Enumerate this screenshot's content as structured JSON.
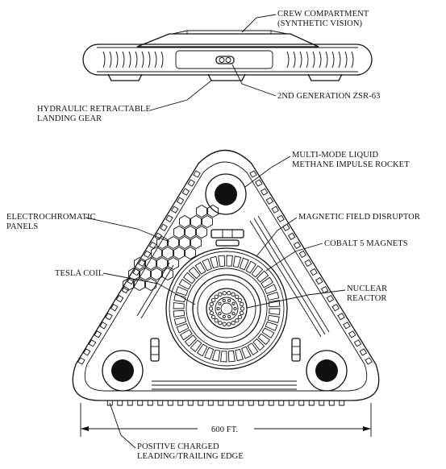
{
  "title": "",
  "labels": {
    "crew_1": "CREW COMPARTMENT",
    "crew_2": "(SYNTHETIC VISION)",
    "gen_2": "2ND GENERATION ZSR-63",
    "gear_1": "HYDRAULIC RETRACTABLE",
    "gear_2": "LANDING GEAR",
    "rocket_1": "MULTI-MODE LIQUID",
    "rocket_2": "METHANE IMPULSE ROCKET",
    "electro_1": "ELECTROCHROMATIC",
    "electro_2": "PANELS",
    "mfd": "MAGNETIC FIELD DISRUPTOR",
    "cobalt": "COBALT 5 MAGNETS",
    "tesla": "TESLA COIL",
    "nuclear_1": "NUCLEAR",
    "nuclear_2": "REACTOR",
    "dimension": "600 FT.",
    "edge_1": "POSITIVE CHARGED",
    "edge_2": "LEADING/TRAILING EDGE"
  }
}
